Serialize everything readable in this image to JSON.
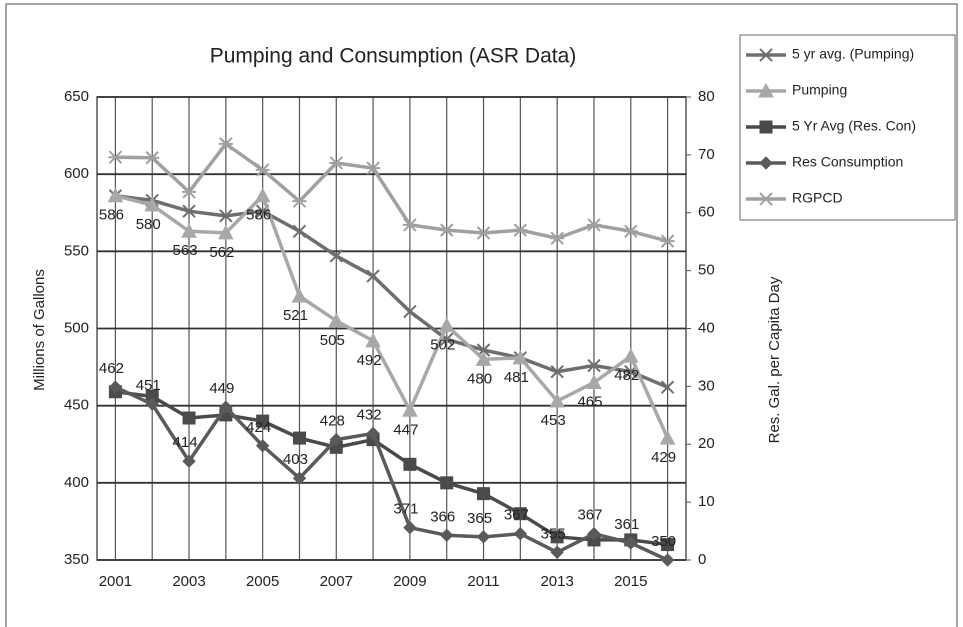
{
  "chart_data": {
    "type": "line",
    "title": "Pumping and Consumption (ASR Data)",
    "y_label": "Millions of Gallons",
    "y2_label": "Res. Gal. per  Capita Day",
    "categories": [
      "2001",
      null,
      "2003",
      null,
      "2005",
      null,
      "2007",
      null,
      "2009",
      null,
      "2011",
      null,
      "2013",
      null,
      "2015",
      null
    ],
    "ylim": [
      350,
      650
    ],
    "yticks": [
      350,
      400,
      450,
      500,
      550,
      600,
      650
    ],
    "y2lim": [
      0,
      80
    ],
    "y2ticks": [
      0,
      10,
      20,
      30,
      40,
      50,
      60,
      70,
      80
    ],
    "grid": true,
    "legend": "right",
    "series": [
      {
        "name": "5 yr avg. (Pumping)",
        "color": "#6e6e6e",
        "marker": "x",
        "values": [
          586,
          583,
          576,
          573,
          576,
          563,
          547,
          534,
          511,
          493,
          486,
          481,
          472,
          476,
          472,
          462
        ]
      },
      {
        "name": "Pumping",
        "color": "#a8a8a8",
        "marker": "triangle",
        "labels": "below",
        "values": [
          586,
          580,
          563,
          562,
          586,
          521,
          505,
          492,
          447,
          502,
          480,
          481,
          453,
          465,
          482,
          429
        ]
      },
      {
        "name": "5 Yr Avg (Res. Con)",
        "color": "#4a4a4a",
        "marker": "square",
        "values": [
          459,
          456,
          442,
          444,
          440,
          429,
          423,
          428,
          412,
          400,
          393,
          380,
          365,
          363,
          363,
          360
        ]
      },
      {
        "name": "Res Consumption",
        "color": "#5a5a5a",
        "marker": "diamond",
        "labels": "above",
        "values": [
          462,
          451,
          414,
          449,
          424,
          403,
          428,
          432,
          371,
          366,
          365,
          367,
          355,
          367,
          361,
          350
        ]
      },
      {
        "name": "RGPCD",
        "color": "#a0a0a0",
        "marker": "asterisk",
        "axis": "y2",
        "values": [
          69.6,
          69.5,
          63.6,
          71.9,
          67.4,
          62,
          68.6,
          67.7,
          57.9,
          57,
          56.5,
          57,
          55.6,
          57.9,
          56.8,
          55.1
        ]
      }
    ]
  }
}
